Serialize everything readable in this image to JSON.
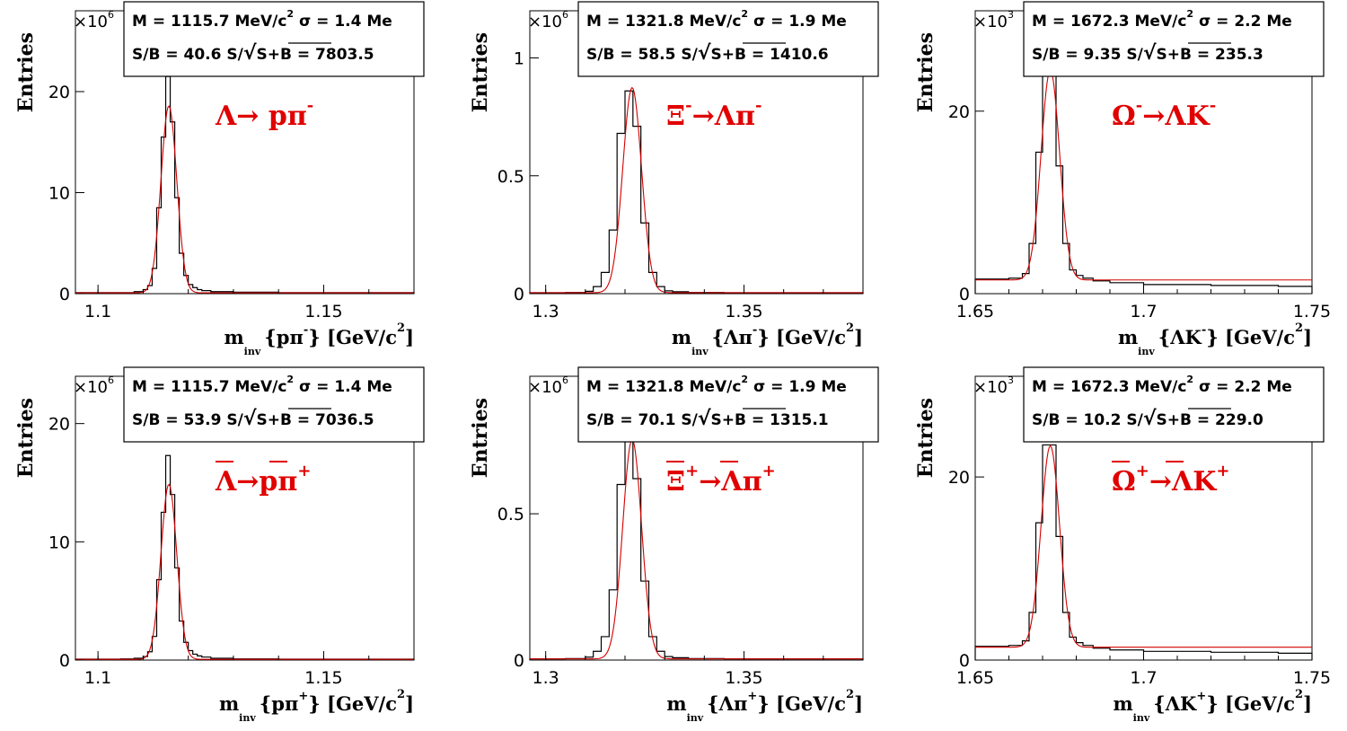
{
  "figure": {
    "y_axis_label": "Entries",
    "x_unit": "[GeV/c",
    "x_unit_exp": "2",
    "x_unit_close": "]",
    "x_var_main": "m",
    "x_var_sub": "inv",
    "multiplier_base": "×10",
    "multiplier_exp_thousand": "3",
    "multiplier_exp_million": "6"
  },
  "chart_data": [
    {
      "type": "bar",
      "particle": "Λ → pπ⁻",
      "decay_label": "Λ→ pπ",
      "decay_charge": "-",
      "decay_bar": false,
      "x_argument": "{pπ",
      "x_argument_charge": "-",
      "x_argument_close": "}",
      "multiplier_exp": "6",
      "stat_line1": "M = 1115.7 MeV/c",
      "stat_line1_exp": "2",
      "stat_line1_sigma": "σ = 1.4 Me",
      "stat_line2_sb": "S/B = 40.6",
      "stat_line2_sig_prefix": "S/",
      "stat_line2_sig_root": "S+B",
      "stat_line2_sig_value": "= 7803.5",
      "xlim": [
        1.095,
        1.17
      ],
      "ylim": [
        0,
        28
      ],
      "xticks": [
        1.1,
        1.15
      ],
      "xtick_labels": [
        "1.1",
        "1.15"
      ],
      "yticks": [
        0,
        10,
        20
      ],
      "ytick_labels": [
        "0",
        "10",
        "20"
      ],
      "mass": 1.1157,
      "sigma": 0.0014,
      "peak": 18.5,
      "background": 0.08,
      "hist_x": [
        1.095,
        1.1,
        1.105,
        1.108,
        1.11,
        1.111,
        1.112,
        1.113,
        1.114,
        1.115,
        1.116,
        1.117,
        1.118,
        1.119,
        1.12,
        1.121,
        1.122,
        1.123,
        1.125,
        1.13,
        1.14,
        1.15,
        1.16,
        1.17
      ],
      "hist_y": [
        0.1,
        0.1,
        0.1,
        0.2,
        0.4,
        0.8,
        2.5,
        8.5,
        15.5,
        21.5,
        17.0,
        9.5,
        4.0,
        1.8,
        0.9,
        0.6,
        0.4,
        0.3,
        0.2,
        0.15,
        0.1,
        0.1,
        0.1
      ]
    },
    {
      "type": "bar",
      "particle": "Ξ⁻ → Λπ⁻",
      "decay_label": "Ξ",
      "decay_label2": "→Λπ",
      "decay_charge1": "-",
      "decay_charge": "-",
      "decay_bar": false,
      "x_argument": "{Λπ",
      "x_argument_charge": "-",
      "x_argument_close": "}",
      "multiplier_exp": "6",
      "stat_line1": "M = 1321.8 MeV/c",
      "stat_line1_exp": "2",
      "stat_line1_sigma": "σ = 1.9 Me",
      "stat_line2_sb": "S/B = 58.5",
      "stat_line2_sig_prefix": "S/",
      "stat_line2_sig_root": "S+B",
      "stat_line2_sig_value": "= 1410.6",
      "xlim": [
        1.296,
        1.38
      ],
      "ylim": [
        0,
        1.2
      ],
      "xticks": [
        1.3,
        1.35
      ],
      "xtick_labels": [
        "1.3",
        "1.35"
      ],
      "yticks": [
        0,
        0.5,
        1
      ],
      "ytick_labels": [
        "0",
        "0.5",
        "1"
      ],
      "mass": 1.3218,
      "sigma": 0.0019,
      "peak": 0.87,
      "background": 0.004,
      "hist_x": [
        1.296,
        1.305,
        1.31,
        1.312,
        1.314,
        1.316,
        1.318,
        1.32,
        1.322,
        1.324,
        1.326,
        1.328,
        1.33,
        1.332,
        1.336,
        1.345,
        1.36,
        1.38
      ],
      "hist_y": [
        0.004,
        0.005,
        0.01,
        0.03,
        0.09,
        0.27,
        0.68,
        0.86,
        0.71,
        0.3,
        0.09,
        0.03,
        0.012,
        0.008,
        0.005,
        0.004,
        0.004
      ]
    },
    {
      "type": "bar",
      "particle": "Ω⁻ → ΛK⁻",
      "decay_label": "Ω",
      "decay_label2": "→ΛK",
      "decay_charge1": "-",
      "decay_charge": "-",
      "decay_bar": false,
      "x_argument": "{ΛK",
      "x_argument_charge": "-",
      "x_argument_close": "}",
      "multiplier_exp": "3",
      "stat_line1": "M = 1672.3 MeV/c",
      "stat_line1_exp": "2",
      "stat_line1_sigma": "σ = 2.2 Me",
      "stat_line2_sb": "S/B = 9.35",
      "stat_line2_sig_prefix": "S/",
      "stat_line2_sig_root": "S+B",
      "stat_line2_sig_value": "= 235.3",
      "xlim": [
        1.65,
        1.75
      ],
      "ylim": [
        0,
        31
      ],
      "xticks": [
        1.65,
        1.7,
        1.75
      ],
      "xtick_labels": [
        "1.65",
        "1.7",
        "1.75"
      ],
      "yticks": [
        0,
        20
      ],
      "ytick_labels": [
        "0",
        "20"
      ],
      "mass": 1.6723,
      "sigma": 0.0022,
      "peak": 23.0,
      "background": 1.5,
      "hist_x": [
        1.65,
        1.66,
        1.664,
        1.666,
        1.668,
        1.67,
        1.672,
        1.674,
        1.676,
        1.678,
        1.68,
        1.682,
        1.685,
        1.69,
        1.7,
        1.72,
        1.74,
        1.75
      ],
      "hist_y": [
        1.6,
        1.7,
        2.2,
        5.5,
        15.5,
        24.5,
        24.5,
        14.0,
        5.5,
        2.6,
        2.0,
        1.7,
        1.4,
        1.2,
        1.0,
        0.9,
        0.8
      ]
    },
    {
      "type": "bar",
      "particle": "anti-Λ → anti-p π⁺",
      "decay_label": "Λ→pπ",
      "decay_charge": "+",
      "decay_bar": true,
      "x_argument": "{pπ",
      "x_argument_charge": "+",
      "x_argument_close": "}",
      "multiplier_exp": "6",
      "stat_line1": "M = 1115.7 MeV/c",
      "stat_line1_exp": "2",
      "stat_line1_sigma": "σ = 1.4 Me",
      "stat_line2_sb": "S/B = 53.9",
      "stat_line2_sig_prefix": "S/",
      "stat_line2_sig_root": "S+B",
      "stat_line2_sig_value": "= 7036.5",
      "xlim": [
        1.095,
        1.17
      ],
      "ylim": [
        0,
        24
      ],
      "xticks": [
        1.1,
        1.15
      ],
      "xtick_labels": [
        "1.1",
        "1.15"
      ],
      "yticks": [
        0,
        10,
        20
      ],
      "ytick_labels": [
        "0",
        "10",
        "20"
      ],
      "mass": 1.1157,
      "sigma": 0.0014,
      "peak": 14.8,
      "background": 0.06,
      "hist_x": [
        1.095,
        1.1,
        1.105,
        1.108,
        1.11,
        1.111,
        1.112,
        1.113,
        1.114,
        1.115,
        1.116,
        1.117,
        1.118,
        1.119,
        1.12,
        1.121,
        1.122,
        1.123,
        1.125,
        1.13,
        1.14,
        1.15,
        1.16,
        1.17
      ],
      "hist_y": [
        0.08,
        0.08,
        0.1,
        0.15,
        0.3,
        0.7,
        2.0,
        6.8,
        12.5,
        17.3,
        14.0,
        7.8,
        3.3,
        1.5,
        0.8,
        0.5,
        0.35,
        0.25,
        0.15,
        0.1,
        0.08,
        0.08,
        0.08
      ]
    },
    {
      "type": "bar",
      "particle": "anti-Ξ⁺ → anti-Λ π⁺",
      "decay_label": "Ξ",
      "decay_label2": "→Λπ",
      "decay_charge1": "+",
      "decay_charge": "+",
      "decay_bar": true,
      "x_argument": "{Λπ",
      "x_argument_charge": "+",
      "x_argument_close": "}",
      "multiplier_exp": "6",
      "stat_line1": "M = 1321.8 MeV/c",
      "stat_line1_exp": "2",
      "stat_line1_sigma": "σ = 1.9 Me",
      "stat_line2_sb": "S/B = 70.1",
      "stat_line2_sig_prefix": "S/",
      "stat_line2_sig_root": "S+B",
      "stat_line2_sig_value": "= 1315.1",
      "xlim": [
        1.296,
        1.38
      ],
      "ylim": [
        0,
        0.97
      ],
      "xticks": [
        1.3,
        1.35
      ],
      "xtick_labels": [
        "1.3",
        "1.35"
      ],
      "yticks": [
        0,
        0.5
      ],
      "ytick_labels": [
        "0",
        "0.5"
      ],
      "mass": 1.3218,
      "sigma": 0.0019,
      "peak": 0.75,
      "background": 0.004,
      "hist_x": [
        1.296,
        1.305,
        1.31,
        1.312,
        1.314,
        1.316,
        1.318,
        1.32,
        1.322,
        1.324,
        1.326,
        1.328,
        1.33,
        1.332,
        1.336,
        1.345,
        1.36,
        1.38
      ],
      "hist_y": [
        0.004,
        0.005,
        0.01,
        0.03,
        0.08,
        0.24,
        0.6,
        0.75,
        0.62,
        0.27,
        0.08,
        0.03,
        0.012,
        0.008,
        0.005,
        0.004,
        0.004
      ]
    },
    {
      "type": "bar",
      "particle": "anti-Ω⁺ → anti-Λ K⁺",
      "decay_label": "Ω",
      "decay_label2": "→ΛK",
      "decay_charge1": "+",
      "decay_charge": "+",
      "decay_bar": true,
      "x_argument": "{ΛK",
      "x_argument_charge": "+",
      "x_argument_close": "}",
      "multiplier_exp": "3",
      "stat_line1": "M = 1672.3 MeV/c",
      "stat_line1_exp": "2",
      "stat_line1_sigma": "σ = 2.2 Me",
      "stat_line2_sb": "S/B = 10.2",
      "stat_line2_sig_prefix": "S/",
      "stat_line2_sig_root": "S+B",
      "stat_line2_sig_value": "= 229.0",
      "xlim": [
        1.65,
        1.75
      ],
      "ylim": [
        0,
        31
      ],
      "xticks": [
        1.65,
        1.7,
        1.75
      ],
      "xtick_labels": [
        "1.65",
        "1.7",
        "1.75"
      ],
      "yticks": [
        0,
        20
      ],
      "ytick_labels": [
        "0",
        "20"
      ],
      "mass": 1.6723,
      "sigma": 0.0022,
      "peak": 22.0,
      "background": 1.4,
      "hist_x": [
        1.65,
        1.66,
        1.664,
        1.666,
        1.668,
        1.67,
        1.672,
        1.674,
        1.676,
        1.678,
        1.68,
        1.682,
        1.685,
        1.69,
        1.7,
        1.72,
        1.74,
        1.75
      ],
      "hist_y": [
        1.5,
        1.6,
        2.1,
        5.2,
        15.0,
        23.5,
        23.5,
        13.5,
        5.2,
        2.5,
        1.9,
        1.6,
        1.3,
        1.1,
        0.95,
        0.85,
        0.75
      ]
    }
  ]
}
